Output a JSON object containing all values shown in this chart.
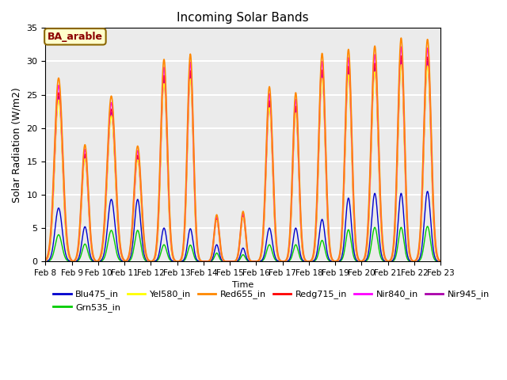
{
  "title": "Incoming Solar Bands",
  "xlabel": "Time",
  "ylabel": "Solar Radiation (W/m2)",
  "annotation": "BA_arable",
  "ylim": [
    0,
    35
  ],
  "series": {
    "Blu475_in": {
      "color": "#0000CD",
      "lw": 1.0
    },
    "Grn535_in": {
      "color": "#00CC00",
      "lw": 1.0
    },
    "Yel580_in": {
      "color": "#FFFF00",
      "lw": 1.0
    },
    "Red655_in": {
      "color": "#FF8800",
      "lw": 1.2
    },
    "Redg715_in": {
      "color": "#FF0000",
      "lw": 1.0
    },
    "Nir840_in": {
      "color": "#FF00FF",
      "lw": 1.2
    },
    "Nir945_in": {
      "color": "#AA00AA",
      "lw": 1.0
    }
  },
  "background_color": "#ebebeb",
  "grid_color": "#ffffff",
  "num_days": 15,
  "start_day": 8,
  "points_per_day": 288,
  "daily_peaks": [
    27.5,
    17.5,
    24.8,
    17.3,
    30.3,
    31.1,
    7.0,
    7.5,
    26.2,
    25.3,
    31.2,
    31.8,
    32.3,
    33.5,
    33.3
  ],
  "blue_peaks": [
    8.0,
    5.2,
    9.3,
    9.3,
    5.0,
    4.9,
    2.5,
    2.0,
    5.0,
    5.0,
    6.3,
    9.5,
    10.2,
    10.2,
    10.5
  ],
  "peak_widths": [
    0.16,
    0.13,
    0.16,
    0.14,
    0.13,
    0.12,
    0.1,
    0.1,
    0.13,
    0.12,
    0.13,
    0.13,
    0.14,
    0.13,
    0.14
  ],
  "xticklabels": [
    "Feb 8",
    "Feb 9",
    "Feb 10",
    "Feb 11",
    "Feb 12",
    "Feb 13",
    "Feb 14",
    "Feb 15",
    "Feb 16",
    "Feb 17",
    "Feb 18",
    "Feb 19",
    "Feb 20",
    "Feb 21",
    "Feb 22",
    "Feb 23"
  ]
}
